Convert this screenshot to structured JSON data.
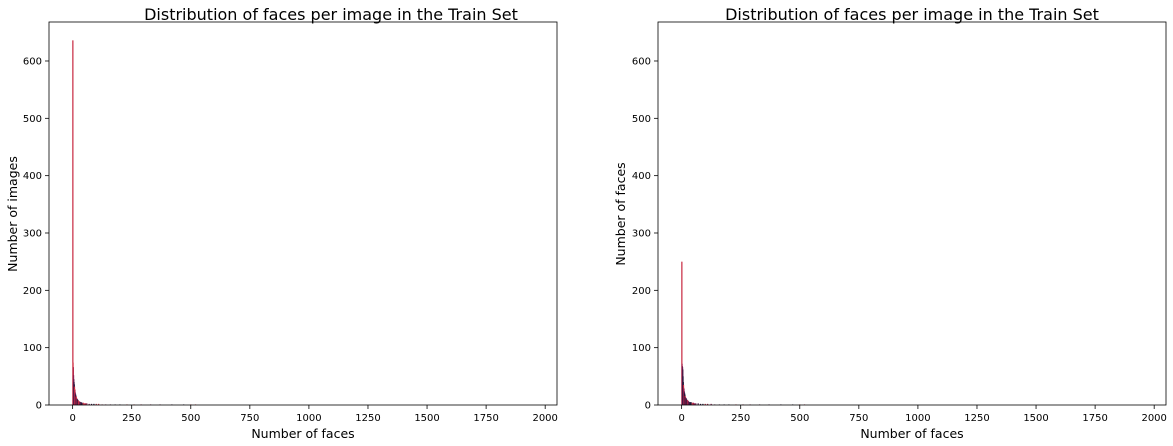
{
  "chart_data": [
    {
      "type": "bar",
      "title": "Distribution of faces per image in the Train Set",
      "xlabel": "Number of faces",
      "ylabel": "Number of images",
      "xlim": [
        -100,
        2050
      ],
      "ylim": [
        0,
        668
      ],
      "x_ticks": [
        "0",
        "250",
        "500",
        "750",
        "1000",
        "1250",
        "1500",
        "1750",
        "2000"
      ],
      "y_ticks": [
        "0",
        "100",
        "200",
        "300",
        "400",
        "500",
        "600"
      ],
      "grid": false,
      "color_scheme": "red-to-purple",
      "colors": [
        "#c8283f",
        "#d2384a",
        "#b02448",
        "#8e2050",
        "#6a1c4c",
        "#3f1744",
        "#22163a"
      ],
      "x": [
        1,
        2,
        3,
        4,
        5,
        6,
        7,
        8,
        9,
        10,
        11,
        12,
        13,
        14,
        15,
        16,
        17,
        18,
        19,
        20,
        22,
        24,
        26,
        28,
        30,
        33,
        36,
        40,
        45,
        50,
        55,
        60,
        70,
        80,
        90,
        100,
        110,
        125,
        140,
        160,
        180,
        200,
        230,
        260,
        290,
        330,
        370,
        420,
        470,
        500,
        520
      ],
      "values": [
        636,
        74,
        66,
        52,
        45,
        40,
        36,
        32,
        28,
        26,
        22,
        20,
        18,
        16,
        15,
        14,
        12,
        11,
        10,
        10,
        9,
        8,
        7,
        6,
        6,
        5,
        5,
        4,
        4,
        3,
        3,
        3,
        2,
        2,
        2,
        2,
        2,
        1,
        1,
        1,
        1,
        1,
        1,
        1,
        1,
        1,
        1,
        1,
        1,
        1,
        1
      ]
    },
    {
      "type": "bar",
      "title": "Distribution of faces per image in the Train Set",
      "xlabel": "Number of faces",
      "ylabel": "Number of faces",
      "xlim": [
        -100,
        2050
      ],
      "ylim": [
        0,
        668
      ],
      "x_ticks": [
        "0",
        "250",
        "500",
        "750",
        "1000",
        "1250",
        "1500",
        "1750",
        "2000"
      ],
      "y_ticks": [
        "0",
        "100",
        "200",
        "300",
        "400",
        "500",
        "600"
      ],
      "grid": false,
      "color_scheme": "red-to-purple",
      "colors": [
        "#c8283f",
        "#a8234a",
        "#8a1f52",
        "#6a1c4c",
        "#4a1846",
        "#2c163e",
        "#1a1434"
      ],
      "x": [
        1,
        2,
        3,
        4,
        5,
        6,
        7,
        8,
        9,
        10,
        11,
        12,
        13,
        14,
        15,
        16,
        17,
        18,
        19,
        20,
        22,
        24,
        26,
        28,
        30,
        33,
        36,
        40,
        45,
        50,
        55,
        60,
        70,
        80,
        90,
        100,
        110,
        125,
        140,
        160,
        180,
        200,
        230,
        260,
        290,
        330,
        370,
        420,
        470,
        500,
        520
      ],
      "values": [
        250,
        72,
        68,
        66,
        62,
        50,
        40,
        35,
        30,
        28,
        24,
        22,
        20,
        18,
        16,
        14,
        13,
        12,
        12,
        10,
        9,
        9,
        8,
        7,
        6,
        5,
        5,
        5,
        4,
        4,
        3,
        3,
        3,
        2,
        2,
        2,
        2,
        2,
        1,
        1,
        1,
        1,
        1,
        1,
        1,
        1,
        1,
        1,
        1,
        1,
        1
      ]
    }
  ]
}
